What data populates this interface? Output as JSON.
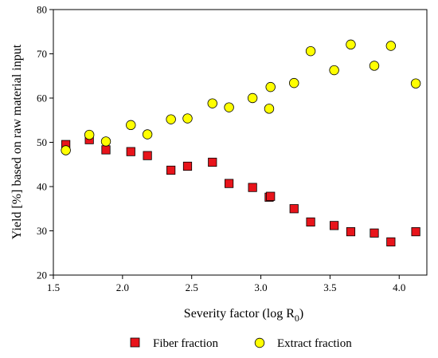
{
  "chart_data": {
    "type": "scatter",
    "xlabel_main": "Severity factor (log R",
    "xlabel_sub": "0",
    "xlabel_close": ")",
    "ylabel": "Yield [%] based on raw material input",
    "xlim": [
      1.5,
      4.2
    ],
    "ylim": [
      20,
      80
    ],
    "xticks": [
      "1.5",
      "2.0",
      "2.5",
      "3.0",
      "3.5",
      "4.0"
    ],
    "xtick_values": [
      1.5,
      2.0,
      2.5,
      3.0,
      3.5,
      4.0
    ],
    "yticks": [
      "20",
      "30",
      "40",
      "50",
      "60",
      "70",
      "80"
    ],
    "ytick_values": [
      20,
      30,
      40,
      50,
      60,
      70,
      80
    ],
    "grid": false,
    "legend_position": "bottom",
    "series": [
      {
        "name": "Fiber fraction",
        "marker": "square",
        "color": "#e8141b",
        "x": [
          1.59,
          1.76,
          1.88,
          2.06,
          2.18,
          2.35,
          2.47,
          2.65,
          2.77,
          2.94,
          3.06,
          3.07,
          3.24,
          3.36,
          3.53,
          3.65,
          3.82,
          3.94,
          4.12
        ],
        "y": [
          49.5,
          50.6,
          48.3,
          47.9,
          47.0,
          43.7,
          44.6,
          45.5,
          40.7,
          39.8,
          37.6,
          37.8,
          35.0,
          32.0,
          31.2,
          29.8,
          29.5,
          27.5,
          29.8
        ]
      },
      {
        "name": "Extract fraction",
        "marker": "circle",
        "color": "#ffff00",
        "x": [
          1.59,
          1.76,
          1.88,
          2.06,
          2.18,
          2.35,
          2.47,
          2.65,
          2.77,
          2.94,
          3.06,
          3.07,
          3.24,
          3.36,
          3.53,
          3.65,
          3.82,
          3.94,
          4.12
        ],
        "y": [
          48.2,
          51.7,
          50.2,
          53.9,
          51.8,
          55.2,
          55.4,
          58.8,
          57.9,
          60.0,
          57.6,
          62.5,
          63.4,
          70.6,
          66.3,
          72.1,
          67.3,
          71.8,
          63.3
        ]
      }
    ]
  }
}
